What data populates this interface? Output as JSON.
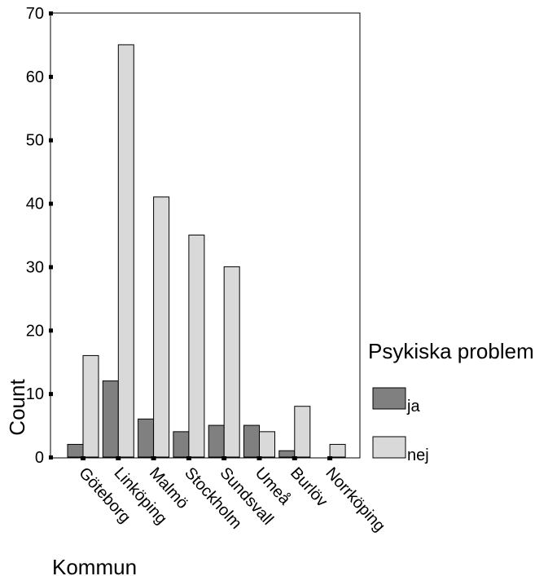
{
  "chart_data": {
    "type": "bar",
    "categories": [
      "Göteborg",
      "Linköping",
      "Malmö",
      "Stockholm",
      "Sundsvall",
      "Umeå",
      "Burlöv",
      "Norrköping"
    ],
    "series": [
      {
        "name": "ja",
        "color": "#808080",
        "values": [
          2,
          12,
          6,
          4,
          5,
          5,
          1,
          0
        ]
      },
      {
        "name": "nej",
        "color": "#d9d9d9",
        "values": [
          16,
          65,
          41,
          35,
          30,
          4,
          8,
          2
        ]
      }
    ],
    "xlabel": "Kommun",
    "ylabel": "Count",
    "yticks": [
      0,
      10,
      20,
      30,
      40,
      50,
      60,
      70
    ],
    "ylim": [
      0,
      70
    ],
    "legend": {
      "title": "Psykiska problem",
      "position": "right"
    },
    "grid": false
  }
}
